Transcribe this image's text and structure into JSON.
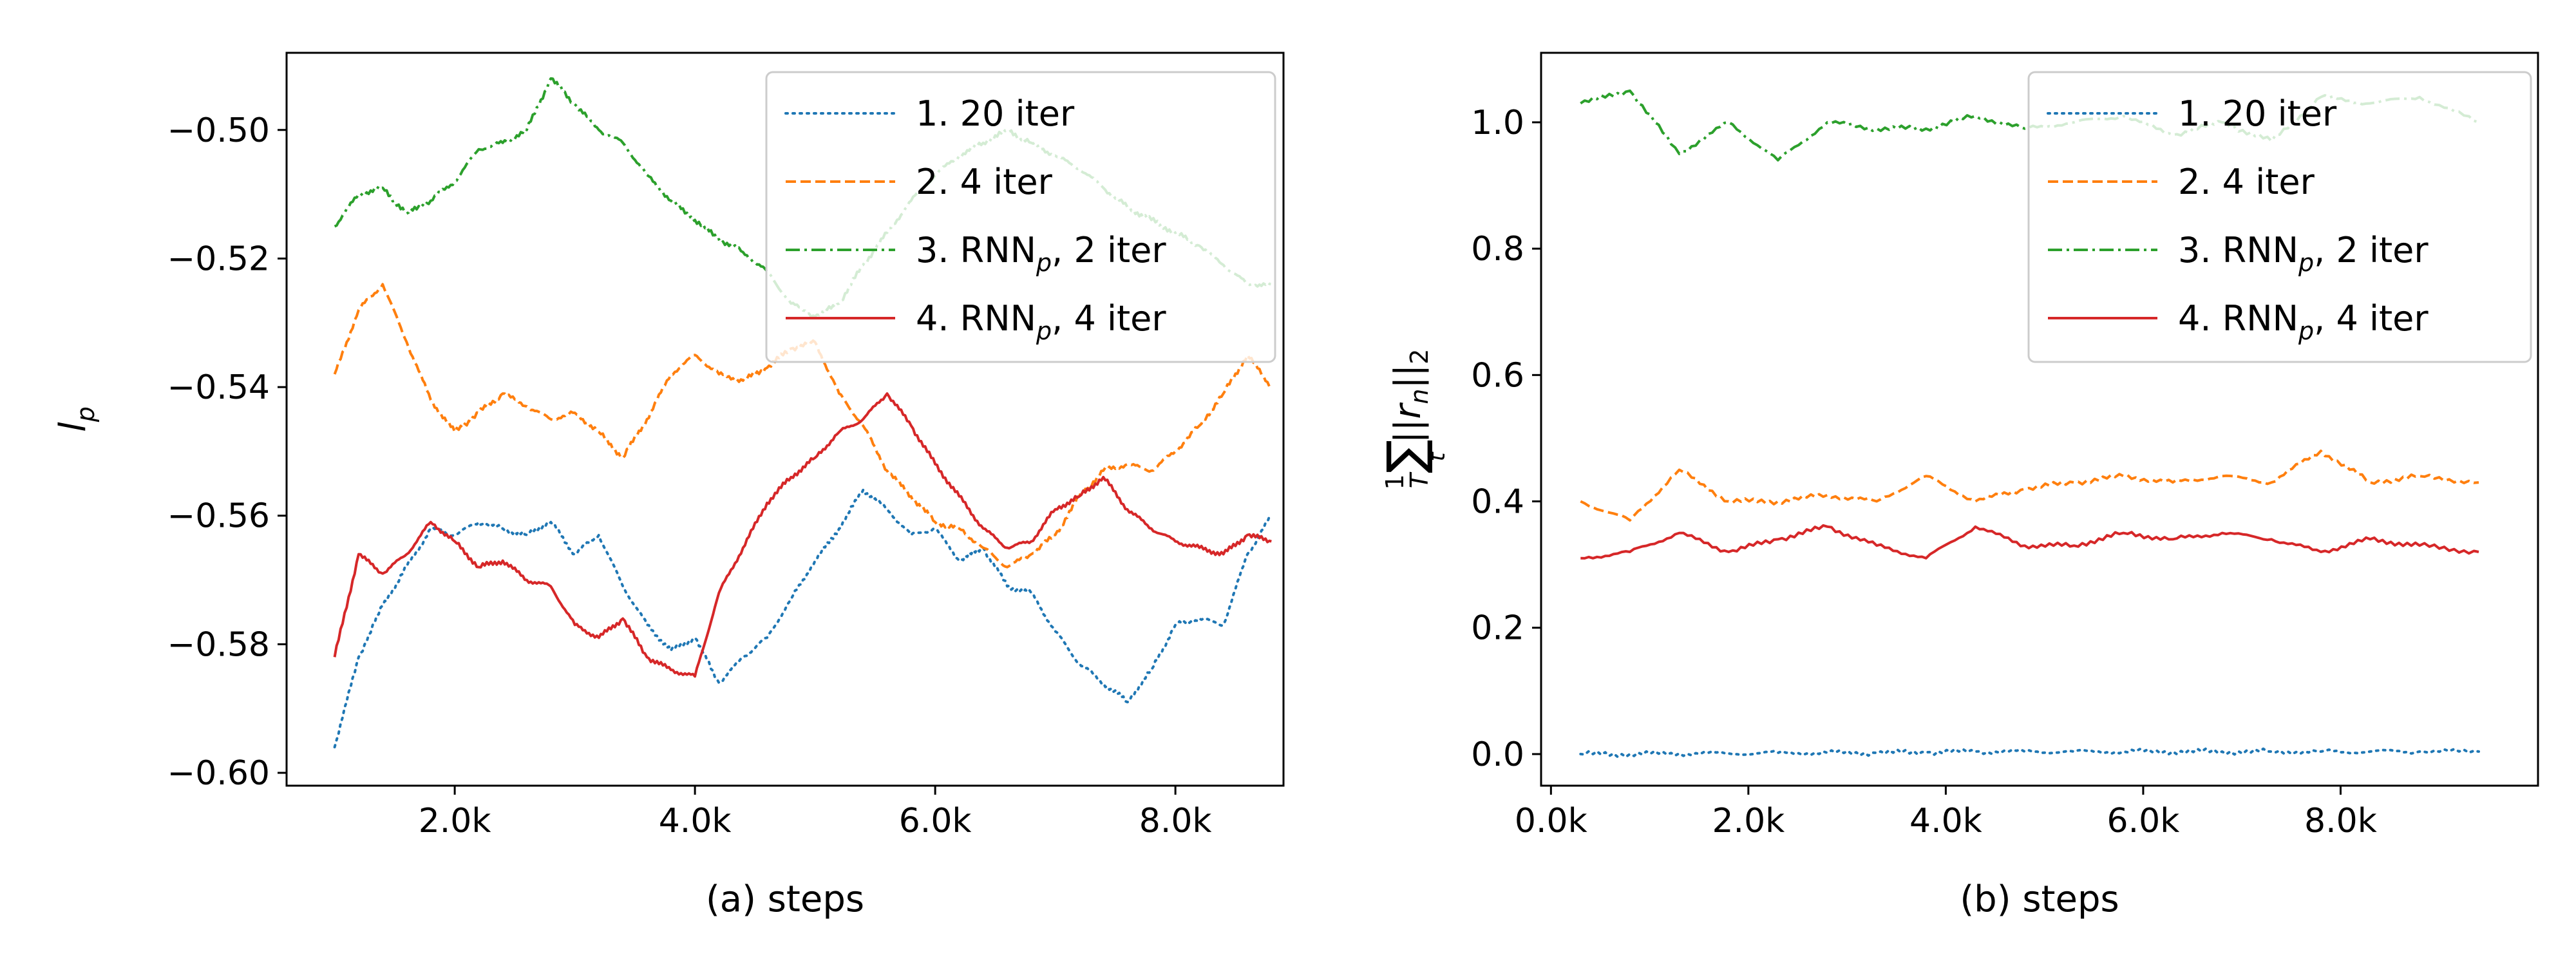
{
  "colors": {
    "s1": "#1f77b4",
    "s2": "#ff7f0e",
    "s3": "#2ca02c",
    "s4": "#d62728",
    "axis": "#000000",
    "legend_edge": "#cccccc"
  },
  "chart_data": [
    {
      "type": "line",
      "xlabel": "(a) steps",
      "ylabel_base": "l",
      "ylabel_sub": "p",
      "xlim": [
        600,
        8900
      ],
      "ylim": [
        -0.602,
        -0.488
      ],
      "xticks": [
        2000,
        4000,
        6000,
        8000
      ],
      "xtick_labels": [
        "2.0k",
        "4.0k",
        "6.0k",
        "8.0k"
      ],
      "yticks": [
        -0.6,
        -0.58,
        -0.56,
        -0.54,
        -0.52,
        -0.5
      ],
      "ytick_labels": [
        "−0.60",
        "−0.58",
        "−0.56",
        "−0.54",
        "−0.52",
        "−0.50"
      ],
      "legend": {
        "position": "top-right",
        "entries": [
          {
            "num": "1.",
            "base": "20 iter",
            "sub": "",
            "rest": ""
          },
          {
            "num": "2.",
            "base": "4 iter",
            "sub": "",
            "rest": ""
          },
          {
            "num": "3.",
            "base": "RNN",
            "sub": "p",
            "rest": ", 2 iter"
          },
          {
            "num": "4.",
            "base": "RNN",
            "sub": "p",
            "rest": ", 4 iter"
          }
        ]
      },
      "series": [
        {
          "name": "1. 20 iter",
          "style": "dotted",
          "x": [
            1000,
            1200,
            1400,
            1600,
            1800,
            2000,
            2200,
            2400,
            2600,
            2800,
            3000,
            3200,
            3400,
            3600,
            3800,
            4000,
            4200,
            4400,
            4600,
            4800,
            5000,
            5200,
            5400,
            5600,
            5800,
            6000,
            6200,
            6400,
            6600,
            6800,
            7000,
            7200,
            7400,
            7600,
            7800,
            8000,
            8200,
            8400,
            8600,
            8800
          ],
          "y": [
            -0.596,
            -0.582,
            -0.574,
            -0.568,
            -0.562,
            -0.563,
            -0.561,
            -0.562,
            -0.563,
            -0.561,
            -0.566,
            -0.563,
            -0.571,
            -0.577,
            -0.581,
            -0.579,
            -0.586,
            -0.582,
            -0.579,
            -0.573,
            -0.567,
            -0.562,
            -0.556,
            -0.559,
            -0.563,
            -0.562,
            -0.567,
            -0.565,
            -0.571,
            -0.572,
            -0.578,
            -0.583,
            -0.586,
            -0.589,
            -0.584,
            -0.577,
            -0.576,
            -0.577,
            -0.566,
            -0.56
          ]
        },
        {
          "name": "2. 4 iter",
          "style": "dashed",
          "x": [
            1000,
            1200,
            1400,
            1600,
            1800,
            2000,
            2200,
            2400,
            2600,
            2800,
            3000,
            3200,
            3400,
            3600,
            3800,
            4000,
            4200,
            4400,
            4600,
            4800,
            5000,
            5200,
            5400,
            5600,
            5800,
            6000,
            6200,
            6400,
            6600,
            6800,
            7000,
            7200,
            7400,
            7600,
            7800,
            8000,
            8200,
            8400,
            8600,
            8800
          ],
          "y": [
            -0.538,
            -0.528,
            -0.524,
            -0.533,
            -0.542,
            -0.547,
            -0.544,
            -0.541,
            -0.543,
            -0.545,
            -0.544,
            -0.547,
            -0.551,
            -0.545,
            -0.538,
            -0.535,
            -0.538,
            -0.539,
            -0.537,
            -0.534,
            -0.533,
            -0.541,
            -0.546,
            -0.553,
            -0.557,
            -0.561,
            -0.562,
            -0.565,
            -0.568,
            -0.566,
            -0.563,
            -0.557,
            -0.553,
            -0.552,
            -0.553,
            -0.55,
            -0.546,
            -0.541,
            -0.535,
            -0.54
          ]
        },
        {
          "name": "3. RNNp, 2 iter",
          "style": "dashdot",
          "x": [
            1000,
            1200,
            1400,
            1600,
            1800,
            2000,
            2200,
            2400,
            2600,
            2800,
            3000,
            3200,
            3400,
            3600,
            3800,
            4000,
            4200,
            4400,
            4600,
            4800,
            5000,
            5200,
            5400,
            5600,
            5800,
            6000,
            6200,
            6400,
            6600,
            6800,
            7000,
            7200,
            7400,
            7600,
            7800,
            8000,
            8200,
            8400,
            8600,
            8800
          ],
          "y": [
            -0.515,
            -0.51,
            -0.509,
            -0.513,
            -0.511,
            -0.508,
            -0.503,
            -0.502,
            -0.5,
            -0.492,
            -0.496,
            -0.5,
            -0.502,
            -0.507,
            -0.511,
            -0.514,
            -0.517,
            -0.519,
            -0.522,
            -0.527,
            -0.529,
            -0.527,
            -0.521,
            -0.516,
            -0.511,
            -0.507,
            -0.504,
            -0.502,
            -0.5,
            -0.502,
            -0.504,
            -0.506,
            -0.509,
            -0.512,
            -0.514,
            -0.516,
            -0.518,
            -0.521,
            -0.524,
            -0.524
          ]
        },
        {
          "name": "4. RNNp, 4 iter",
          "style": "solid",
          "x": [
            1000,
            1200,
            1400,
            1600,
            1800,
            2000,
            2200,
            2400,
            2600,
            2800,
            3000,
            3200,
            3400,
            3600,
            3800,
            4000,
            4200,
            4400,
            4600,
            4800,
            5000,
            5200,
            5400,
            5600,
            5800,
            6000,
            6200,
            6400,
            6600,
            6800,
            7000,
            7200,
            7400,
            7600,
            7800,
            8000,
            8200,
            8400,
            8600,
            8800
          ],
          "y": [
            -0.582,
            -0.566,
            -0.569,
            -0.566,
            -0.561,
            -0.564,
            -0.568,
            -0.567,
            -0.57,
            -0.571,
            -0.577,
            -0.579,
            -0.576,
            -0.582,
            -0.584,
            -0.585,
            -0.572,
            -0.565,
            -0.558,
            -0.554,
            -0.551,
            -0.547,
            -0.545,
            -0.541,
            -0.546,
            -0.552,
            -0.557,
            -0.562,
            -0.565,
            -0.564,
            -0.559,
            -0.557,
            -0.554,
            -0.559,
            -0.562,
            -0.564,
            -0.565,
            -0.566,
            -0.563,
            -0.564
          ]
        }
      ]
    },
    {
      "type": "line",
      "xlabel": "(b) steps",
      "ylabel_parts": {
        "frac_num": "1",
        "frac_den": "T",
        "sum": "∑",
        "sum_sub": "t",
        "norm_open": "||",
        "r": "r",
        "r_sub": "n",
        "norm_close": "||",
        "norm_sub": "2"
      },
      "xlim": [
        -100,
        10000
      ],
      "ylim": [
        -0.05,
        1.11
      ],
      "xticks": [
        0,
        2000,
        4000,
        6000,
        8000
      ],
      "xtick_labels": [
        "0.0k",
        "2.0k",
        "4.0k",
        "6.0k",
        "8.0k"
      ],
      "yticks": [
        0.0,
        0.2,
        0.4,
        0.6,
        0.8,
        1.0
      ],
      "ytick_labels": [
        "0.0",
        "0.2",
        "0.4",
        "0.6",
        "0.8",
        "1.0"
      ],
      "legend": {
        "position": "top-right",
        "entries": [
          {
            "num": "1.",
            "base": "20 iter",
            "sub": "",
            "rest": ""
          },
          {
            "num": "2.",
            "base": "4 iter",
            "sub": "",
            "rest": ""
          },
          {
            "num": "3.",
            "base": "RNN",
            "sub": "p",
            "rest": ", 2 iter"
          },
          {
            "num": "4.",
            "base": "RNN",
            "sub": "p",
            "rest": ", 4 iter"
          }
        ]
      },
      "series": [
        {
          "name": "1. 20 iter",
          "style": "dotted",
          "x": [
            300,
            800,
            1300,
            1800,
            2300,
            2800,
            3300,
            3800,
            4300,
            4800,
            5300,
            5800,
            6300,
            6800,
            7300,
            7800,
            8300,
            8800,
            9400
          ],
          "y": [
            0.0,
            0.0,
            0.001,
            0.001,
            0.002,
            0.002,
            0.002,
            0.003,
            0.004,
            0.004,
            0.004,
            0.004,
            0.004,
            0.004,
            0.004,
            0.004,
            0.004,
            0.004,
            0.004
          ]
        },
        {
          "name": "2. 4 iter",
          "style": "dashed",
          "x": [
            300,
            800,
            1300,
            1800,
            2300,
            2800,
            3300,
            3800,
            4300,
            4800,
            5300,
            5800,
            6300,
            6800,
            7300,
            7800,
            8300,
            8800,
            9400
          ],
          "y": [
            0.4,
            0.37,
            0.45,
            0.4,
            0.4,
            0.41,
            0.4,
            0.44,
            0.4,
            0.42,
            0.43,
            0.44,
            0.43,
            0.44,
            0.43,
            0.48,
            0.43,
            0.44,
            0.43
          ]
        },
        {
          "name": "3. RNNp, 2 iter",
          "style": "dashdot",
          "x": [
            300,
            800,
            1300,
            1800,
            2300,
            2800,
            3300,
            3800,
            4300,
            4800,
            5300,
            5800,
            6300,
            6800,
            7300,
            7800,
            8300,
            8800,
            9400
          ],
          "y": [
            1.03,
            1.05,
            0.95,
            1.0,
            0.94,
            1.0,
            0.99,
            0.99,
            1.01,
            0.99,
            1.0,
            1.01,
            0.98,
            1.0,
            0.97,
            1.04,
            1.03,
            1.04,
            1.0
          ]
        },
        {
          "name": "4. RNNp, 4 iter",
          "style": "solid",
          "x": [
            300,
            800,
            1300,
            1800,
            2300,
            2800,
            3300,
            3800,
            4300,
            4800,
            5300,
            5800,
            6300,
            6800,
            7300,
            7800,
            8300,
            8800,
            9400
          ],
          "y": [
            0.31,
            0.32,
            0.35,
            0.32,
            0.34,
            0.36,
            0.33,
            0.31,
            0.36,
            0.33,
            0.33,
            0.35,
            0.34,
            0.35,
            0.34,
            0.32,
            0.34,
            0.33,
            0.32
          ]
        }
      ]
    }
  ]
}
